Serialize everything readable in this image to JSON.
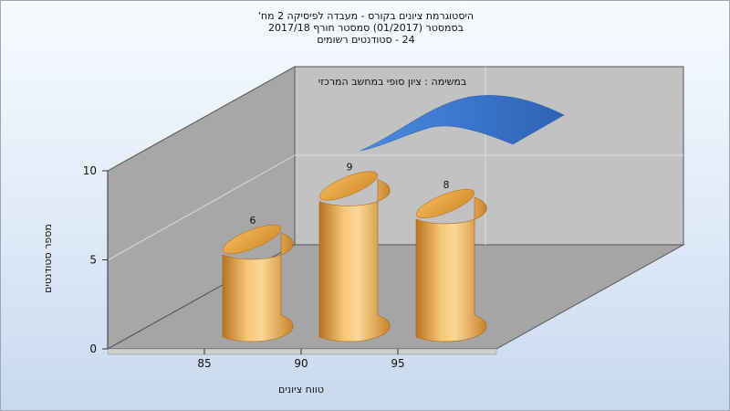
{
  "title_lines": [
    "היסטוגרמת ציונים בקורס - מעבדה לפיסיקה 2 מח'",
    "בסמסטר  (01/2017)  סמסטר חורף 2017/18",
    "24 - סטודנטים רשומים"
  ],
  "chart_data": {
    "type": "bar",
    "title": "היסטוגרמת ציונים בקורס - מעבדה לפיסיקה 2 מח'",
    "subtitle": [
      "בסמסטר  (01/2017)  סמסטר חורף 2017/18",
      "24 - סטודנטים רשומים"
    ],
    "legend_text": "במשימה : ציון סופי במחשב המרכזי",
    "xlabel": "טווח ציונים",
    "ylabel": "מספר סטודנטים",
    "categories": [
      "85",
      "90",
      "95"
    ],
    "x_tick_labels": [
      "85",
      "90",
      "95"
    ],
    "values": [
      6,
      9,
      8
    ],
    "data_labels": [
      "6",
      "9",
      "8"
    ],
    "y_ticks": [
      "0",
      "5",
      "10"
    ],
    "ylim": [
      0,
      10
    ],
    "grid": true,
    "bar_color": "#e3a13f",
    "curve_color": "#3b78c8"
  }
}
